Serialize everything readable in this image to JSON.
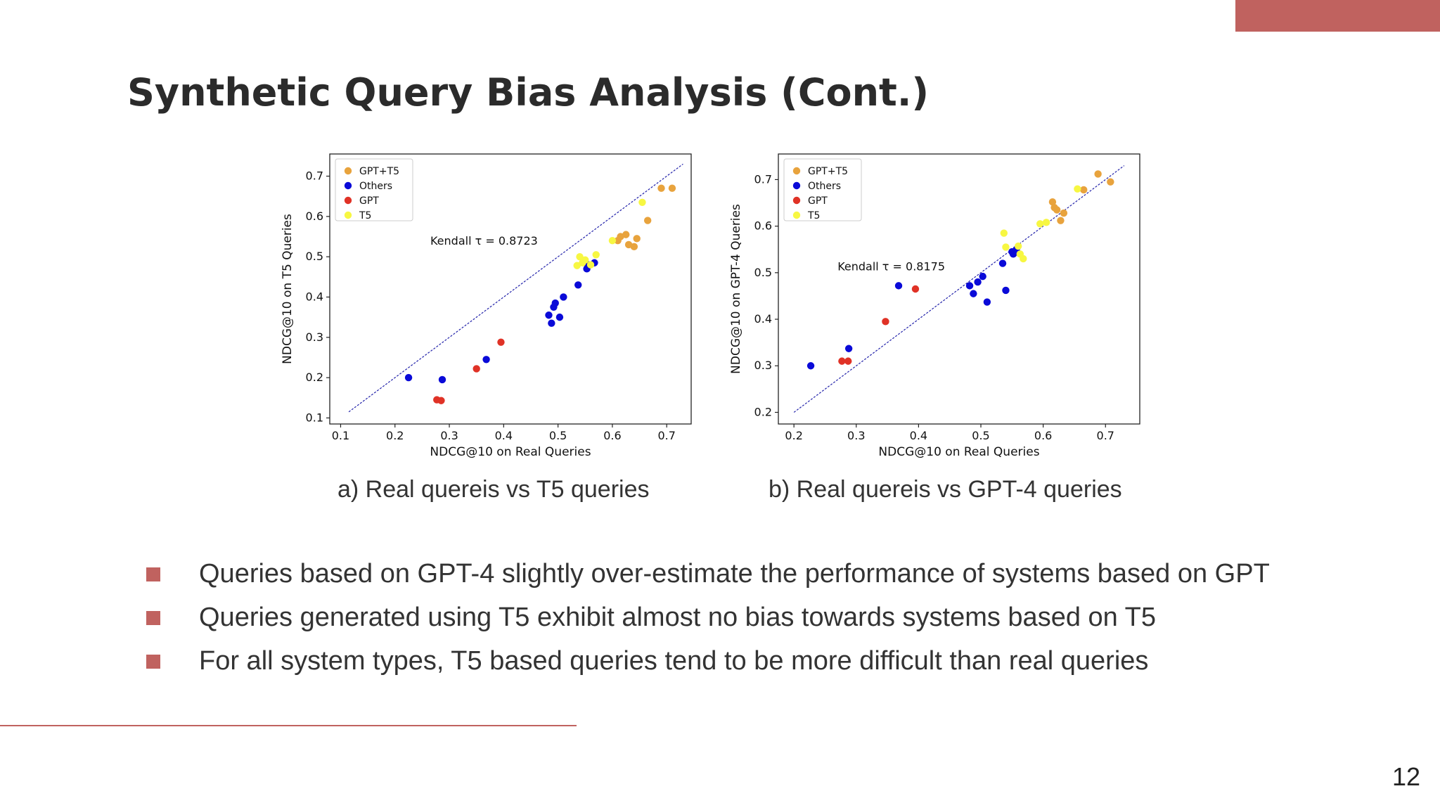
{
  "slide": {
    "title": "Synthetic Query Bias Analysis (Cont.)",
    "page_number": "12",
    "accent_color": "#c0625f"
  },
  "captions": {
    "a": "a) Real quereis vs T5 queries",
    "b": "b) Real quereis vs GPT-4 queries"
  },
  "bullets": [
    "Queries based on GPT-4 slightly over-estimate the performance of systems based on GPT",
    "Queries generated using T5 exhibit almost no bias towards systems based on T5",
    "For all system types, T5 based queries tend to be more difficult than real queries"
  ],
  "chart_data": [
    {
      "type": "scatter",
      "title": "",
      "xlabel": "NDCG@10 on Real Queries",
      "ylabel": "NDCG@10 on T5 Queries",
      "xlim": [
        0.08,
        0.745
      ],
      "ylim": [
        0.085,
        0.755
      ],
      "xticks": [
        "0.1",
        "0.2",
        "0.3",
        "0.4",
        "0.5",
        "0.6",
        "0.7"
      ],
      "yticks": [
        "0.1",
        "0.2",
        "0.3",
        "0.4",
        "0.5",
        "0.6",
        "0.7"
      ],
      "annotation": "Kendall τ = 0.8723",
      "annotation_pos": [
        0.265,
        0.53
      ],
      "diagonal": [
        0.115,
        0.73
      ],
      "legend_position": "top-left",
      "series": [
        {
          "name": "GPT+T5",
          "color": "#e8a33d",
          "points": [
            [
              0.61,
              0.54
            ],
            [
              0.615,
              0.55
            ],
            [
              0.625,
              0.555
            ],
            [
              0.63,
              0.53
            ],
            [
              0.64,
              0.525
            ],
            [
              0.645,
              0.545
            ],
            [
              0.665,
              0.59
            ],
            [
              0.69,
              0.67
            ],
            [
              0.71,
              0.67
            ]
          ]
        },
        {
          "name": "Others",
          "color": "#0a0ad8",
          "points": [
            [
              0.225,
              0.2
            ],
            [
              0.287,
              0.195
            ],
            [
              0.368,
              0.245
            ],
            [
              0.483,
              0.355
            ],
            [
              0.488,
              0.335
            ],
            [
              0.492,
              0.375
            ],
            [
              0.495,
              0.385
            ],
            [
              0.503,
              0.35
            ],
            [
              0.51,
              0.4
            ],
            [
              0.537,
              0.43
            ],
            [
              0.553,
              0.47
            ],
            [
              0.555,
              0.48
            ],
            [
              0.567,
              0.485
            ]
          ]
        },
        {
          "name": "GPT",
          "color": "#e03226",
          "points": [
            [
              0.277,
              0.145
            ],
            [
              0.285,
              0.143
            ],
            [
              0.35,
              0.222
            ],
            [
              0.395,
              0.288
            ]
          ]
        },
        {
          "name": "T5",
          "color": "#f7f742",
          "points": [
            [
              0.535,
              0.478
            ],
            [
              0.54,
              0.5
            ],
            [
              0.545,
              0.485
            ],
            [
              0.55,
              0.492
            ],
            [
              0.56,
              0.48
            ],
            [
              0.57,
              0.505
            ],
            [
              0.6,
              0.54
            ],
            [
              0.655,
              0.635
            ]
          ]
        }
      ]
    },
    {
      "type": "scatter",
      "title": "",
      "xlabel": "NDCG@10 on Real Queries",
      "ylabel": "NDCG@10 on GPT-4 Queries",
      "xlim": [
        0.175,
        0.755
      ],
      "ylim": [
        0.175,
        0.755
      ],
      "xticks": [
        "0.2",
        "0.3",
        "0.4",
        "0.5",
        "0.6",
        "0.7"
      ],
      "yticks": [
        "0.2",
        "0.3",
        "0.4",
        "0.5",
        "0.6",
        "0.7"
      ],
      "annotation": "Kendall τ = 0.8175",
      "annotation_pos": [
        0.27,
        0.505
      ],
      "diagonal": [
        0.2,
        0.73
      ],
      "legend_position": "top-left",
      "series": [
        {
          "name": "GPT+T5",
          "color": "#e8a33d",
          "points": [
            [
              0.615,
              0.652
            ],
            [
              0.618,
              0.64
            ],
            [
              0.622,
              0.635
            ],
            [
              0.628,
              0.612
            ],
            [
              0.633,
              0.628
            ],
            [
              0.665,
              0.678
            ],
            [
              0.688,
              0.712
            ],
            [
              0.708,
              0.695
            ]
          ]
        },
        {
          "name": "Others",
          "color": "#0a0ad8",
          "points": [
            [
              0.227,
              0.3
            ],
            [
              0.288,
              0.337
            ],
            [
              0.368,
              0.472
            ],
            [
              0.482,
              0.472
            ],
            [
              0.488,
              0.455
            ],
            [
              0.495,
              0.48
            ],
            [
              0.503,
              0.492
            ],
            [
              0.51,
              0.437
            ],
            [
              0.535,
              0.52
            ],
            [
              0.54,
              0.462
            ],
            [
              0.55,
              0.545
            ],
            [
              0.552,
              0.54
            ],
            [
              0.557,
              0.55
            ]
          ]
        },
        {
          "name": "GPT",
          "color": "#e03226",
          "points": [
            [
              0.277,
              0.31
            ],
            [
              0.287,
              0.31
            ],
            [
              0.347,
              0.395
            ],
            [
              0.395,
              0.465
            ]
          ]
        },
        {
          "name": "T5",
          "color": "#f7f742",
          "points": [
            [
              0.537,
              0.585
            ],
            [
              0.54,
              0.555
            ],
            [
              0.56,
              0.557
            ],
            [
              0.563,
              0.54
            ],
            [
              0.568,
              0.53
            ],
            [
              0.595,
              0.605
            ],
            [
              0.605,
              0.608
            ],
            [
              0.655,
              0.68
            ]
          ]
        }
      ]
    }
  ]
}
